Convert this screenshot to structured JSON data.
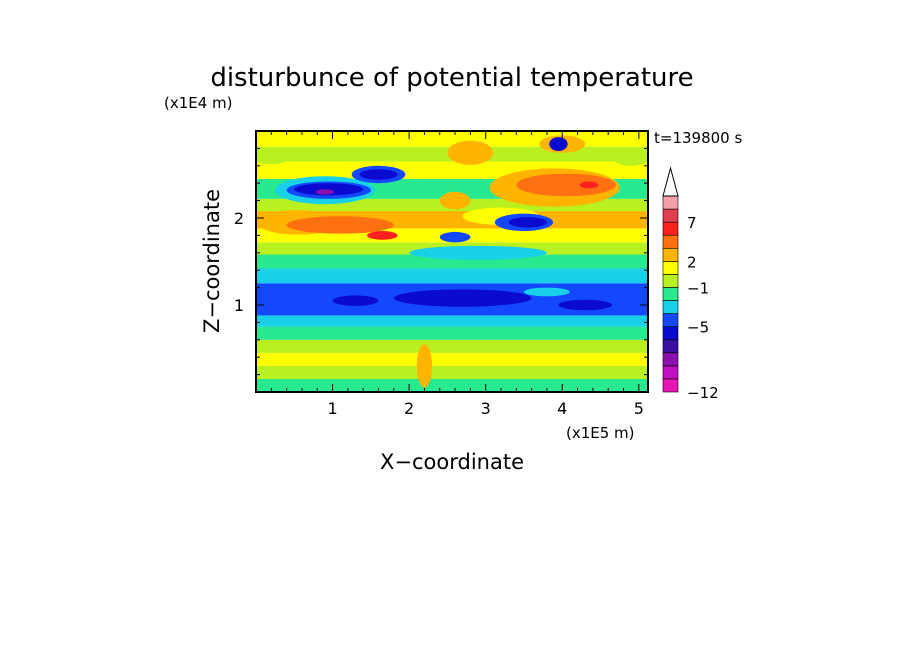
{
  "chart_data": {
    "type": "heatmap",
    "title": "disturbunce of potential temperature",
    "xlabel": "X−coordinate",
    "ylabel": "Z−coordinate",
    "x_scale_label": "(x1E5 m)",
    "y_scale_label": "(x1E4 m)",
    "time_label": "t=139800 s",
    "xlim": [
      0,
      5.12
    ],
    "ylim": [
      0,
      3.0
    ],
    "x_ticks": [
      {
        "value": 1,
        "label": "1"
      },
      {
        "value": 2,
        "label": "2"
      },
      {
        "value": 3,
        "label": "3"
      },
      {
        "value": 4,
        "label": "4"
      },
      {
        "value": 5,
        "label": "5"
      }
    ],
    "y_ticks": [
      {
        "value": 1,
        "label": "1"
      },
      {
        "value": 2,
        "label": "2"
      }
    ],
    "x_minor_step": 0.2,
    "y_minor_step": 0.2,
    "colorbar": {
      "tick_labels": [
        {
          "bin": 0,
          "label": "−12"
        },
        {
          "bin": 5,
          "label": "−5"
        },
        {
          "bin": 8,
          "label": "−1"
        },
        {
          "bin": 10,
          "label": "2"
        },
        {
          "bin": 13,
          "label": "7"
        }
      ],
      "colors": [
        "#e816b4",
        "#c010c0",
        "#8a10b0",
        "#3a10a0",
        "#0a0ad0",
        "#1448ff",
        "#18d0e8",
        "#28e890",
        "#b8f020",
        "#ffff00",
        "#ffb400",
        "#ff7010",
        "#ff2020",
        "#e04050",
        "#f4a0a8"
      ],
      "extend": "max"
    },
    "bands": [
      {
        "z0": 0.0,
        "z1": 0.15,
        "color": "#28e890"
      },
      {
        "z0": 0.15,
        "z1": 0.3,
        "color": "#b8f020"
      },
      {
        "z0": 0.3,
        "z1": 0.45,
        "color": "#ffff00"
      },
      {
        "z0": 0.45,
        "z1": 0.6,
        "color": "#b8f020"
      },
      {
        "z0": 0.6,
        "z1": 0.75,
        "color": "#28e890"
      },
      {
        "z0": 0.75,
        "z1": 0.88,
        "color": "#18d0e8"
      },
      {
        "z0": 0.88,
        "z1": 1.25,
        "color": "#1448ff"
      },
      {
        "z0": 1.25,
        "z1": 1.42,
        "color": "#18d0e8"
      },
      {
        "z0": 1.42,
        "z1": 1.58,
        "color": "#28e890"
      },
      {
        "z0": 1.58,
        "z1": 1.72,
        "color": "#b8f020"
      },
      {
        "z0": 1.72,
        "z1": 1.88,
        "color": "#ffff00"
      },
      {
        "z0": 1.88,
        "z1": 2.08,
        "color": "#ffb400"
      },
      {
        "z0": 2.08,
        "z1": 2.22,
        "color": "#b8f020"
      },
      {
        "z0": 2.22,
        "z1": 2.45,
        "color": "#28e890"
      },
      {
        "z0": 2.45,
        "z1": 2.65,
        "color": "#ffff00"
      },
      {
        "z0": 2.65,
        "z1": 2.82,
        "color": "#b8f020"
      },
      {
        "z0": 2.82,
        "z1": 3.0,
        "color": "#ffff00"
      }
    ],
    "blobs": [
      {
        "x": 0.55,
        "z": 1.95,
        "rx": 0.55,
        "rz": 0.14,
        "color": "#ffb400"
      },
      {
        "x": 1.1,
        "z": 1.92,
        "rx": 0.7,
        "rz": 0.1,
        "color": "#ff7010"
      },
      {
        "x": 1.65,
        "z": 1.8,
        "rx": 0.2,
        "rz": 0.05,
        "color": "#ff2020"
      },
      {
        "x": 0.9,
        "z": 2.32,
        "rx": 0.65,
        "rz": 0.16,
        "color": "#18d0e8"
      },
      {
        "x": 0.95,
        "z": 2.32,
        "rx": 0.55,
        "rz": 0.1,
        "color": "#1448ff"
      },
      {
        "x": 0.95,
        "z": 2.33,
        "rx": 0.45,
        "rz": 0.07,
        "color": "#0a0ad0"
      },
      {
        "x": 0.9,
        "z": 2.3,
        "rx": 0.12,
        "rz": 0.03,
        "color": "#8a10b0"
      },
      {
        "x": 1.6,
        "z": 2.5,
        "rx": 0.35,
        "rz": 0.1,
        "color": "#1448ff"
      },
      {
        "x": 1.6,
        "z": 2.5,
        "rx": 0.25,
        "rz": 0.06,
        "color": "#0a0ad0"
      },
      {
        "x": 3.9,
        "z": 2.35,
        "rx": 0.85,
        "rz": 0.22,
        "color": "#ffb400"
      },
      {
        "x": 4.05,
        "z": 2.38,
        "rx": 0.65,
        "rz": 0.13,
        "color": "#ff7010"
      },
      {
        "x": 4.35,
        "z": 2.38,
        "rx": 0.12,
        "rz": 0.04,
        "color": "#ff2020"
      },
      {
        "x": 3.2,
        "z": 2.02,
        "rx": 0.5,
        "rz": 0.1,
        "color": "#ffff00"
      },
      {
        "x": 3.5,
        "z": 1.95,
        "rx": 0.38,
        "rz": 0.1,
        "color": "#1448ff"
      },
      {
        "x": 3.55,
        "z": 1.95,
        "rx": 0.25,
        "rz": 0.06,
        "color": "#0a0ad0"
      },
      {
        "x": 4.0,
        "z": 2.85,
        "rx": 0.3,
        "rz": 0.1,
        "color": "#ffb400"
      },
      {
        "x": 3.95,
        "z": 2.85,
        "rx": 0.12,
        "rz": 0.08,
        "color": "#0a0ad0"
      },
      {
        "x": 2.8,
        "z": 2.75,
        "rx": 0.3,
        "rz": 0.14,
        "color": "#ffb400"
      },
      {
        "x": 2.6,
        "z": 2.2,
        "rx": 0.2,
        "rz": 0.1,
        "color": "#ffb400"
      },
      {
        "x": 2.6,
        "z": 1.78,
        "rx": 0.2,
        "rz": 0.06,
        "color": "#1448ff"
      },
      {
        "x": 2.9,
        "z": 1.6,
        "rx": 0.9,
        "rz": 0.08,
        "color": "#18d0e8"
      },
      {
        "x": 1.3,
        "z": 1.05,
        "rx": 0.3,
        "rz": 0.06,
        "color": "#0a0ad0"
      },
      {
        "x": 2.7,
        "z": 1.08,
        "rx": 0.9,
        "rz": 0.1,
        "color": "#0a0ad0"
      },
      {
        "x": 4.3,
        "z": 1.0,
        "rx": 0.35,
        "rz": 0.06,
        "color": "#0a0ad0"
      },
      {
        "x": 3.8,
        "z": 1.15,
        "rx": 0.3,
        "rz": 0.05,
        "color": "#18d0e8"
      },
      {
        "x": 4.9,
        "z": 2.7,
        "rx": 0.25,
        "rz": 0.1,
        "color": "#b8f020"
      },
      {
        "x": 0.2,
        "z": 2.7,
        "rx": 0.25,
        "rz": 0.08,
        "color": "#b8f020"
      },
      {
        "x": 2.2,
        "z": 0.3,
        "rx": 0.1,
        "rz": 0.25,
        "color": "#ffb400"
      }
    ]
  }
}
